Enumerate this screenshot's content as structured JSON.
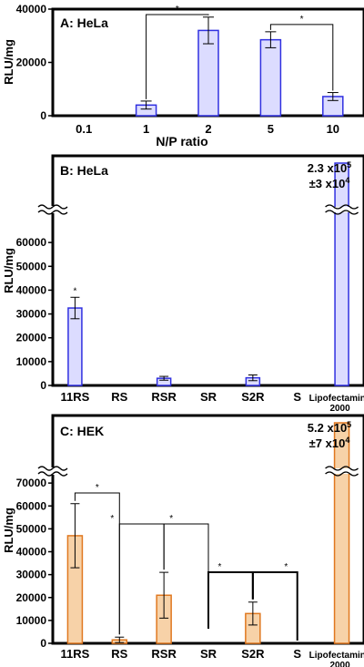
{
  "colors": {
    "blue_fill": "#dcdcff",
    "blue_edge": "#3030e0",
    "orange_fill": "#f7d2a8",
    "orange_edge": "#e07820",
    "frame": "#000000"
  },
  "chart_data": [
    {
      "panel": "A",
      "type": "bar",
      "title": "A: HeLa",
      "xlabel": "N/P ratio",
      "ylabel": "RLU/mg",
      "categories": [
        "0.1",
        "1",
        "2",
        "5",
        "10"
      ],
      "values": [
        0,
        4000,
        32000,
        28500,
        7200
      ],
      "errors": [
        0,
        1500,
        5000,
        3000,
        1500
      ],
      "ylim": [
        0,
        40000
      ],
      "yticks": [
        "0",
        "20000",
        "40000"
      ],
      "color": "blue",
      "significance": [
        {
          "from": 1,
          "to": 2,
          "label": "*"
        },
        {
          "from": 3,
          "to": 4,
          "label": "*"
        }
      ]
    },
    {
      "panel": "B",
      "type": "bar",
      "title": "B: HeLa",
      "ylabel": "RLU/mg",
      "categories": [
        "11RS",
        "RS",
        "RSR",
        "SR",
        "S2R",
        "S",
        "Lipofectamine"
      ],
      "category_sublabels": [
        "",
        "",
        "",
        "",
        "",
        "",
        "2000"
      ],
      "values": [
        32500,
        0,
        3000,
        0,
        3200,
        0,
        230000
      ],
      "errors": [
        4500,
        0,
        800,
        0,
        1200,
        0,
        30000
      ],
      "ylim": [
        0,
        70000
      ],
      "yticks": [
        "0",
        "10000",
        "20000",
        "30000",
        "40000",
        "50000",
        "60000"
      ],
      "axis_break": true,
      "color": "blue",
      "point_labels": [
        {
          "index": 0,
          "label": "*"
        }
      ],
      "value_annotation": {
        "line1": "2.3 x10",
        "exp1": "5",
        "line2": "±3 x10",
        "exp2": "4"
      }
    },
    {
      "panel": "C",
      "type": "bar",
      "title": "C: HEK",
      "ylabel": "RLU/mg",
      "categories": [
        "11RS",
        "RS",
        "RSR",
        "SR",
        "S2R",
        "S",
        "Lipofectamine"
      ],
      "category_sublabels": [
        "",
        "",
        "",
        "",
        "",
        "",
        "2000"
      ],
      "values": [
        47000,
        1500,
        21000,
        0,
        13000,
        0,
        520000
      ],
      "errors": [
        14000,
        1200,
        10000,
        0,
        5000,
        0,
        70000
      ],
      "ylim": [
        0,
        80000
      ],
      "yticks": [
        "0",
        "10000",
        "20000",
        "30000",
        "40000",
        "50000",
        "60000",
        "70000"
      ],
      "axis_break": true,
      "color": "orange",
      "significance": [
        {
          "from": 0,
          "to": 1,
          "label": "*"
        },
        {
          "from": 1,
          "to": 2,
          "label": "*"
        },
        {
          "from": 2,
          "to": 3,
          "label": "*"
        },
        {
          "from": 3,
          "to": 4,
          "label": "*"
        },
        {
          "from": 4,
          "to": 5,
          "label": "*"
        }
      ],
      "value_annotation": {
        "line1": "5.2 x10",
        "exp1": "5",
        "line2": "±7 x10",
        "exp2": "4"
      }
    }
  ]
}
